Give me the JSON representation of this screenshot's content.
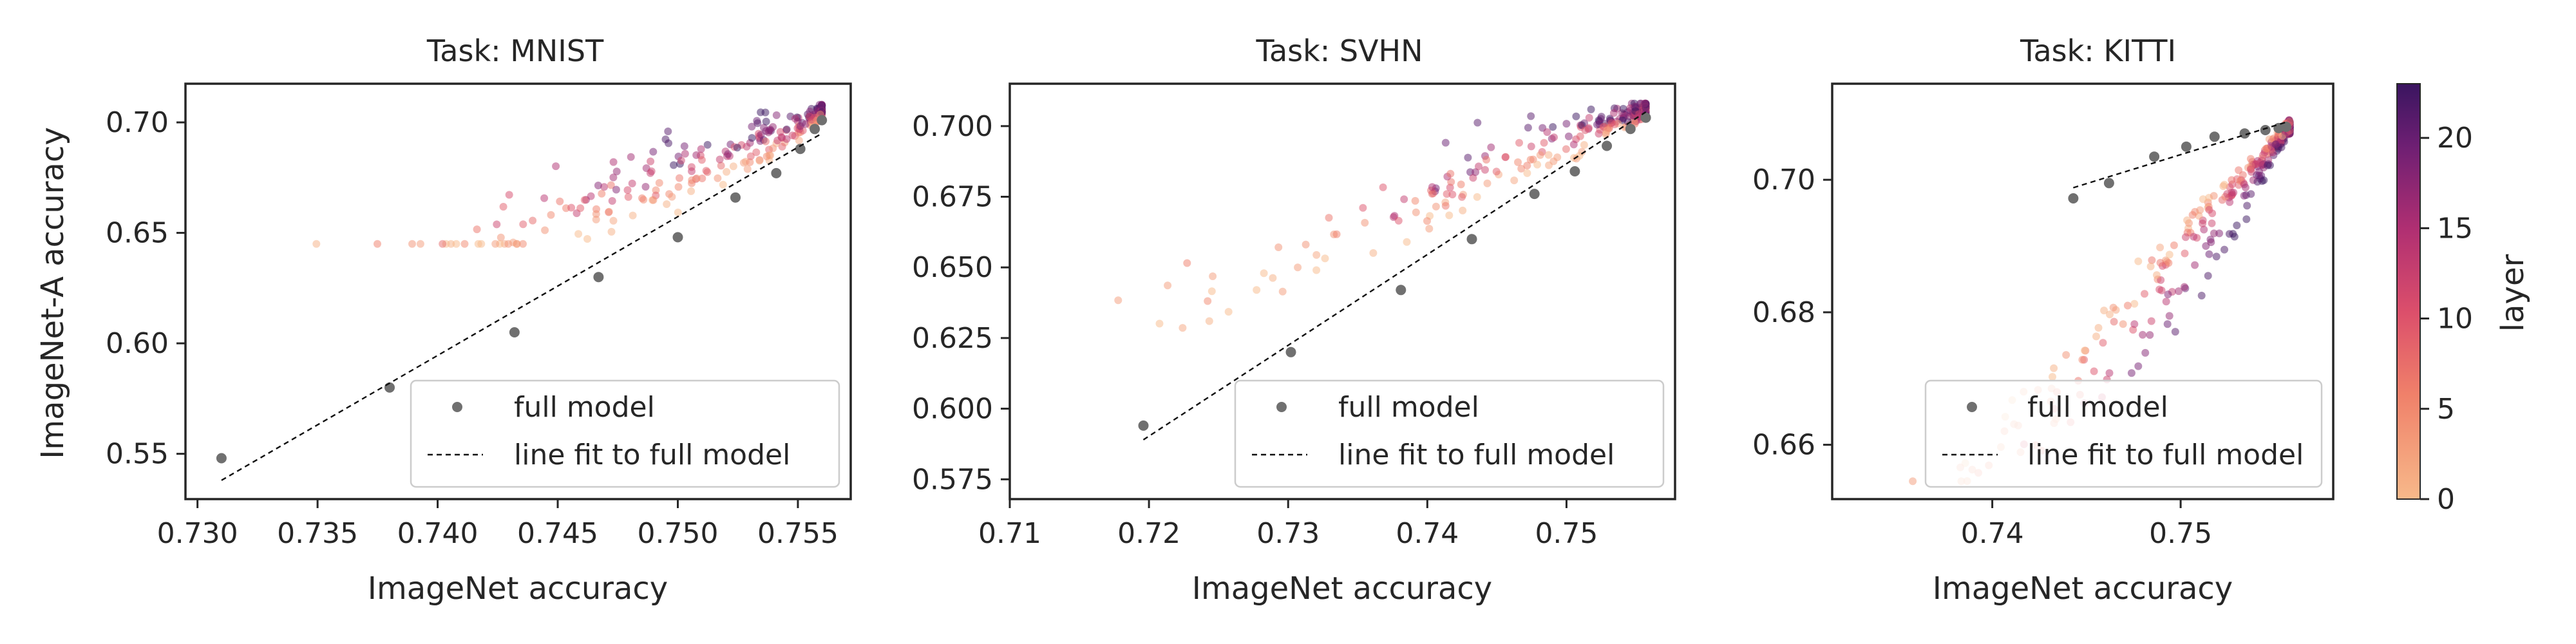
{
  "figure": {
    "colorbar": {
      "label": "layer",
      "range": [
        0,
        23
      ],
      "ticks": [
        0,
        5,
        10,
        15,
        20
      ],
      "tick_labels": [
        "0",
        "5",
        "10",
        "15",
        "20"
      ],
      "colormap": "magma-like (light orange at 0 to dark purple at 23)"
    },
    "full_model_color": "#707070",
    "line_color": "#111111"
  },
  "chart_data": [
    {
      "type": "scatter",
      "title": "Task: MNIST",
      "xlabel": "ImageNet accuracy",
      "ylabel": "ImageNet-A accuracy",
      "xlim": [
        0.7295,
        0.7572
      ],
      "ylim": [
        0.5295,
        0.7175
      ],
      "xticks": [
        0.73,
        0.735,
        0.74,
        0.745,
        0.75,
        0.755
      ],
      "xtick_labels": [
        "0.730",
        "0.735",
        "0.740",
        "0.745",
        "0.750",
        "0.755"
      ],
      "yticks": [
        0.55,
        0.6,
        0.65,
        0.7
      ],
      "ytick_labels": [
        "0.55",
        "0.60",
        "0.65",
        "0.70"
      ],
      "grid": false,
      "legend": {
        "position": "lower-right",
        "entries": [
          "full model",
          "line fit to full model"
        ]
      },
      "full_model": {
        "x": [
          0.731,
          0.738,
          0.7432,
          0.7467,
          0.75,
          0.7524,
          0.7541,
          0.7551,
          0.7557,
          0.756
        ],
        "y": [
          0.548,
          0.58,
          0.605,
          0.63,
          0.648,
          0.666,
          0.677,
          0.688,
          0.697,
          0.701
        ]
      },
      "fit_line": {
        "x": [
          0.731,
          0.756
        ],
        "y": [
          0.538,
          0.695
        ]
      },
      "layer_points": {
        "layer_range": [
          0,
          23
        ],
        "x_range": [
          0.731,
          0.756
        ],
        "y_range": [
          0.645,
          0.708
        ],
        "count": 280
      }
    },
    {
      "type": "scatter",
      "title": "Task: SVHN",
      "xlabel": "ImageNet accuracy",
      "ylabel": "",
      "xlim": [
        0.71,
        0.7578
      ],
      "ylim": [
        0.568,
        0.715
      ],
      "xticks": [
        0.71,
        0.72,
        0.73,
        0.74,
        0.75
      ],
      "xtick_labels": [
        "0.71",
        "0.72",
        "0.73",
        "0.74",
        "0.75"
      ],
      "yticks": [
        0.575,
        0.6,
        0.625,
        0.65,
        0.675,
        0.7
      ],
      "ytick_labels": [
        "0.575",
        "0.600",
        "0.625",
        "0.650",
        "0.675",
        "0.700"
      ],
      "grid": false,
      "legend": {
        "position": "lower-right",
        "entries": [
          "full model",
          "line fit to full model"
        ]
      },
      "full_model": {
        "x": [
          0.7196,
          0.7302,
          0.7381,
          0.7432,
          0.7477,
          0.7506,
          0.7529,
          0.7546,
          0.7557
        ],
        "y": [
          0.594,
          0.62,
          0.642,
          0.66,
          0.676,
          0.684,
          0.693,
          0.699,
          0.703
        ]
      },
      "fit_line": {
        "x": [
          0.7196,
          0.7557
        ],
        "y": [
          0.589,
          0.705
        ]
      },
      "layer_points": {
        "layer_range": [
          0,
          23
        ],
        "x_range": [
          0.712,
          0.7557
        ],
        "y_range": [
          0.574,
          0.708
        ],
        "count": 260
      }
    },
    {
      "type": "scatter",
      "title": "Task: KITTI",
      "xlabel": "ImageNet accuracy",
      "ylabel": "",
      "xlim": [
        0.7315,
        0.7581
      ],
      "ylim": [
        0.6518,
        0.7145
      ],
      "xticks": [
        0.74,
        0.75
      ],
      "xtick_labels": [
        "0.74",
        "0.75"
      ],
      "yticks": [
        0.66,
        0.68,
        0.7
      ],
      "ytick_labels": [
        "0.66",
        "0.68",
        "0.70"
      ],
      "grid": false,
      "legend": {
        "position": "lower-right",
        "entries": [
          "full model",
          "line fit to full model"
        ]
      },
      "full_model": {
        "x": [
          0.7443,
          0.7462,
          0.7486,
          0.7503,
          0.7518,
          0.7534,
          0.7545,
          0.7552,
          0.7556
        ],
        "y": [
          0.6972,
          0.6995,
          0.7035,
          0.705,
          0.7065,
          0.707,
          0.7075,
          0.7078,
          0.708
        ]
      },
      "fit_line": {
        "x": [
          0.7443,
          0.7556
        ],
        "y": [
          0.6988,
          0.7087
        ]
      },
      "layer_points": {
        "layer_range": [
          0,
          23
        ],
        "x_range": [
          0.7328,
          0.7558
        ],
        "y_range": [
          0.6545,
          0.711
        ],
        "count": 320
      }
    }
  ]
}
